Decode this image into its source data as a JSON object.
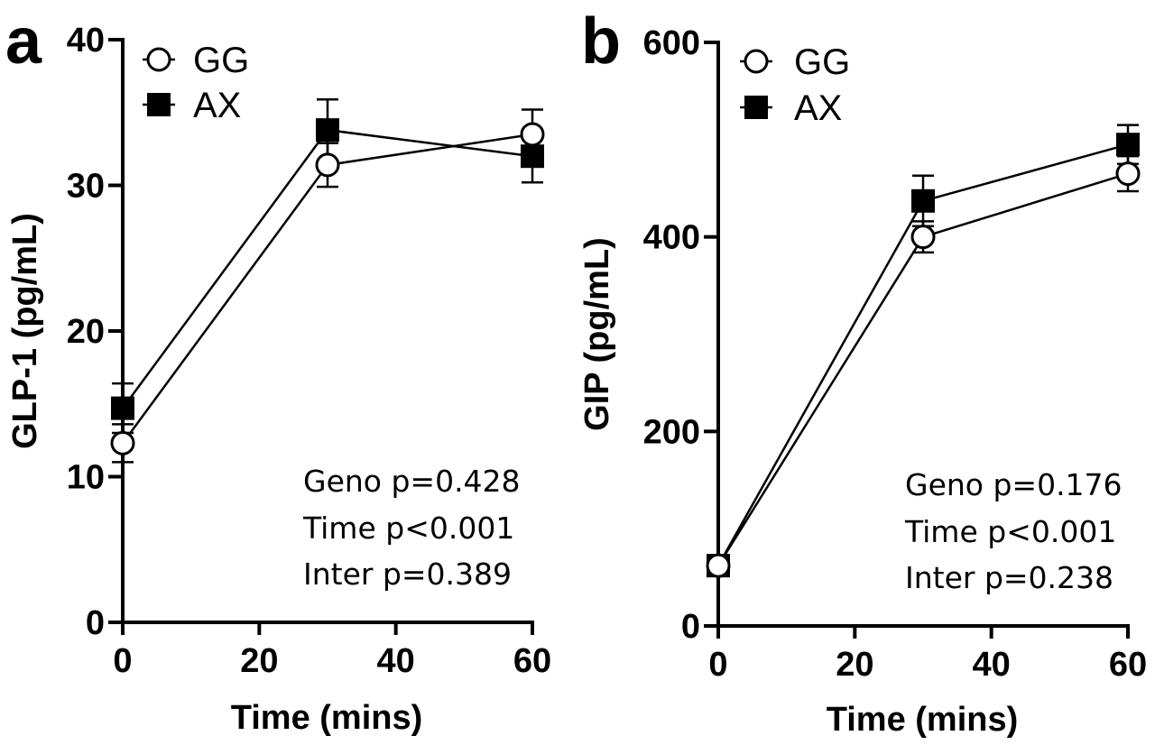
{
  "chart_data": [
    {
      "type": "line",
      "panel_label": "a",
      "xlabel": "Time (mins)",
      "ylabel": "GLP-1 (pg/mL)",
      "xlim": [
        0,
        60
      ],
      "ylim": [
        0,
        40
      ],
      "xticks": [
        0,
        20,
        40,
        60
      ],
      "yticks": [
        0,
        10,
        20,
        30,
        40
      ],
      "x": [
        0,
        30,
        60
      ],
      "series": [
        {
          "name": "GG",
          "marker": "open-circle",
          "values": [
            12.3,
            31.4,
            33.5
          ],
          "errors": [
            1.3,
            1.5,
            1.7
          ]
        },
        {
          "name": "AX",
          "marker": "filled-square",
          "values": [
            14.7,
            33.8,
            32.0
          ],
          "errors": [
            1.7,
            2.1,
            1.8
          ]
        }
      ],
      "legend_position": "top-left",
      "annotations": [
        "Geno p=0.428",
        "Time p<0.001",
        "Inter p=0.389"
      ]
    },
    {
      "type": "line",
      "panel_label": "b",
      "xlabel": "Time (mins)",
      "ylabel": "GIP (pg/mL)",
      "xlim": [
        0,
        60
      ],
      "ylim": [
        0,
        600
      ],
      "xticks": [
        0,
        20,
        40,
        60
      ],
      "yticks": [
        0,
        200,
        400,
        600
      ],
      "x": [
        0,
        30,
        60
      ],
      "series": [
        {
          "name": "GG",
          "marker": "open-circle",
          "values": [
            62,
            400,
            465
          ],
          "errors": [
            5,
            16,
            18
          ]
        },
        {
          "name": "AX",
          "marker": "filled-square",
          "values": [
            62,
            437,
            495
          ],
          "errors": [
            5,
            26,
            20
          ]
        }
      ],
      "legend_position": "top-left",
      "annotations": [
        "Geno p=0.176",
        "Time p<0.001",
        "Inter p=0.238"
      ]
    }
  ]
}
